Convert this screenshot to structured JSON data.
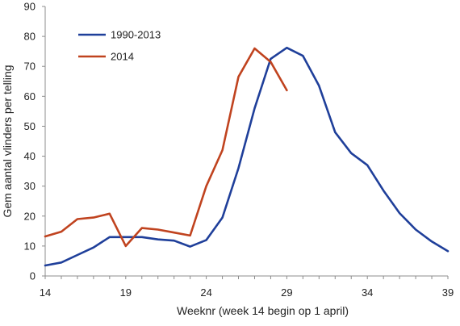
{
  "chart_data": {
    "type": "line",
    "xlabel": "Weeknr (week 14 begin op 1 april)",
    "ylabel": "Gem aantal vlinders per telling",
    "xlim": [
      14,
      39
    ],
    "ylim": [
      0,
      90
    ],
    "xticks": [
      14,
      19,
      24,
      29,
      34,
      39
    ],
    "yticks": [
      0,
      10,
      20,
      30,
      40,
      50,
      60,
      70,
      80,
      90
    ],
    "grid": false,
    "legend_position": "top-left",
    "series": [
      {
        "name": "1990-2013",
        "color": "#1f3f9a",
        "x": [
          14,
          15,
          16,
          17,
          18,
          19,
          20,
          21,
          22,
          23,
          24,
          25,
          26,
          27,
          28,
          29,
          30,
          31,
          32,
          33,
          34,
          35,
          36,
          37,
          38,
          39
        ],
        "y": [
          3.5,
          4.5,
          7,
          9.5,
          13,
          13,
          13,
          12.2,
          11.8,
          9.8,
          12,
          19.5,
          36,
          56,
          72.5,
          76.2,
          73.5,
          63.5,
          48,
          41,
          37,
          28.5,
          21,
          15.5,
          11.5,
          8.3
        ]
      },
      {
        "name": "2014",
        "color": "#c0431f",
        "x": [
          14,
          15,
          16,
          17,
          18,
          19,
          20,
          21,
          22,
          23,
          24,
          25,
          26,
          27,
          28,
          29
        ],
        "y": [
          13.2,
          14.8,
          19,
          19.5,
          20.8,
          10,
          16,
          15.5,
          14.5,
          13.5,
          30,
          42,
          66.5,
          76,
          71.5,
          62
        ]
      }
    ]
  }
}
